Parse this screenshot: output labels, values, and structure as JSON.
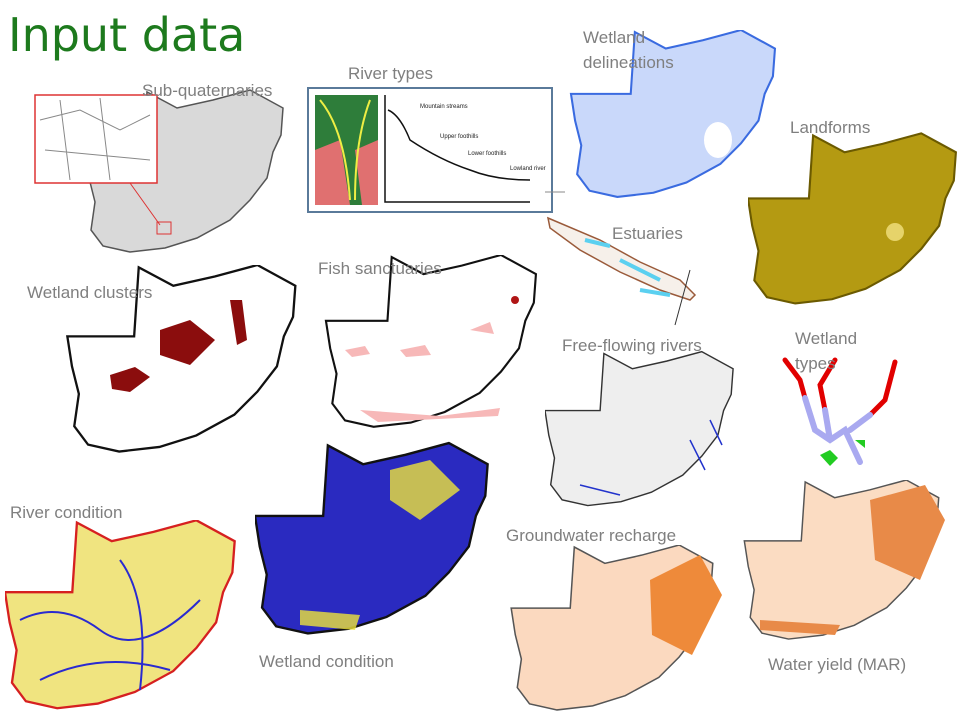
{
  "title": "Input data",
  "labels": {
    "sub_quaternaries": "Sub-quaternaries",
    "river_types": "River types",
    "wetland_delineations": "Wetland delineations",
    "landforms": "Landforms",
    "estuaries": "Estuaries",
    "fish_sanctuaries": "Fish sanctuaries",
    "wetland_clusters": "Wetland clusters",
    "free_flowing_rivers": "Free-flowing rivers",
    "wetland_types": "Wetland types",
    "river_condition": "River condition",
    "groundwater_recharge": "Groundwater recharge",
    "wetland_condition": "Wetland condition",
    "water_yield": "Water yield (MAR)"
  },
  "river_type_profile": [
    "Mountain streams",
    "Upper foothills",
    "Lower foothills",
    "Lowland river"
  ]
}
